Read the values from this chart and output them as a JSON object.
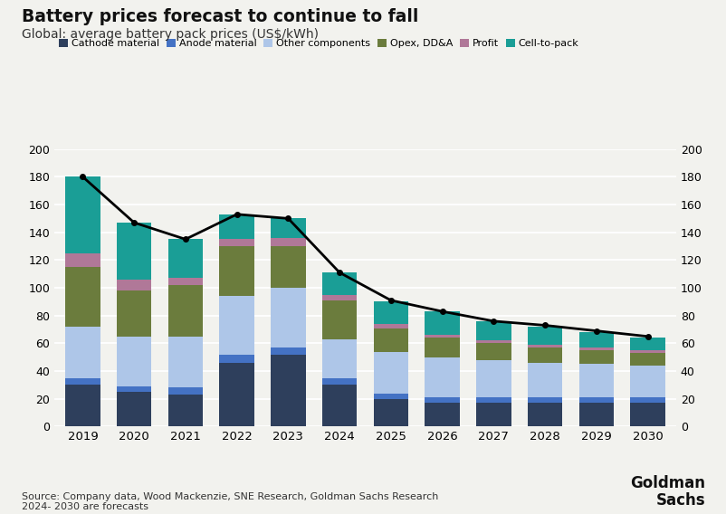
{
  "years": [
    2019,
    2020,
    2021,
    2022,
    2023,
    2024,
    2025,
    2026,
    2027,
    2028,
    2029,
    2030
  ],
  "cathode_material": [
    30,
    25,
    23,
    46,
    52,
    30,
    20,
    17,
    17,
    17,
    17,
    17
  ],
  "anode_material": [
    5,
    4,
    5,
    6,
    5,
    5,
    4,
    4,
    4,
    4,
    4,
    4
  ],
  "other_components": [
    37,
    36,
    37,
    42,
    43,
    28,
    30,
    29,
    27,
    25,
    24,
    23
  ],
  "opex_ddna": [
    43,
    33,
    37,
    36,
    30,
    28,
    17,
    14,
    12,
    11,
    10,
    9
  ],
  "profit": [
    10,
    8,
    5,
    5,
    6,
    4,
    3,
    2,
    2,
    2,
    2,
    2
  ],
  "cell_to_pack": [
    55,
    41,
    28,
    18,
    14,
    16,
    16,
    17,
    14,
    13,
    11,
    9
  ],
  "line_values": [
    180,
    147,
    135,
    153,
    150,
    111,
    91,
    83,
    76,
    73,
    69,
    65
  ],
  "colors": {
    "cathode_material": "#2e3f5c",
    "anode_material": "#4472c4",
    "other_components": "#aec6e8",
    "opex_ddna": "#6b7c3d",
    "profit": "#b07898",
    "cell_to_pack": "#1a9e96"
  },
  "title": "Battery prices forecast to continue to fall",
  "subtitle": "Global: average battery pack prices (US$/kWh)",
  "source_text": "Source: Company data, Wood Mackenzie, SNE Research, Goldman Sachs Research\n2024- 2030 are forecasts",
  "legend_labels": [
    "Cathode material",
    "Anode material",
    "Other components",
    "Opex, DD&A",
    "Profit",
    "Cell-to-pack"
  ],
  "ylim": [
    0,
    200
  ],
  "yticks": [
    0,
    20,
    40,
    60,
    80,
    100,
    120,
    140,
    160,
    180,
    200
  ],
  "bg_color": "#f2f2ee"
}
